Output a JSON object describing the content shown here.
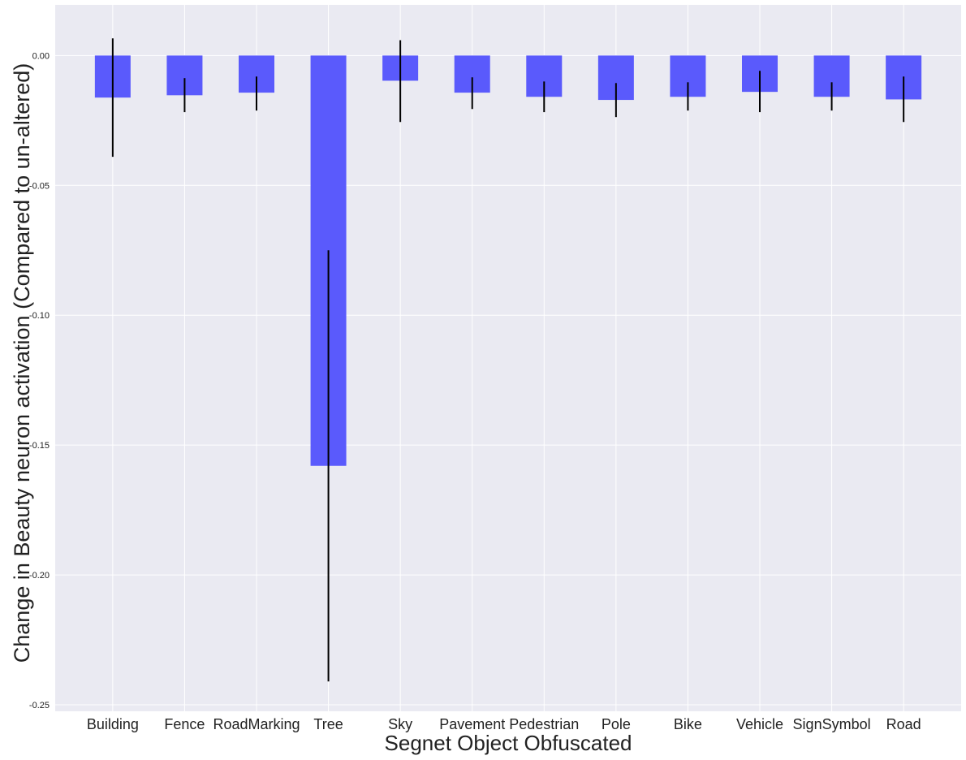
{
  "chart_data": {
    "type": "bar",
    "title": "",
    "xlabel": "Segnet Object Obfuscated",
    "ylabel": "Change in Beauty neuron activation (Compared to un-altered)",
    "categories": [
      "Building",
      "Fence",
      "RoadMarking",
      "Tree",
      "Sky",
      "Pavement",
      "Pedestrian",
      "Pole",
      "Bike",
      "Vehicle",
      "SignSymbol",
      "Road"
    ],
    "values": [
      -0.0162,
      -0.0153,
      -0.0143,
      -0.158,
      -0.0097,
      -0.0143,
      -0.0159,
      -0.0171,
      -0.0159,
      -0.014,
      -0.0159,
      -0.0169
    ],
    "error_low": [
      -0.039,
      -0.0218,
      -0.0212,
      -0.241,
      -0.0256,
      -0.0206,
      -0.0218,
      -0.0237,
      -0.0212,
      -0.0218,
      -0.0212,
      -0.0256
    ],
    "error_high": [
      0.0066,
      -0.0087,
      -0.0081,
      -0.075,
      0.0059,
      -0.0084,
      -0.01,
      -0.0106,
      -0.0103,
      -0.0059,
      -0.0103,
      -0.0081
    ],
    "ylim": [
      -0.2525,
      0.0195
    ],
    "yticks": [
      0.0,
      -0.05,
      -0.1,
      -0.15,
      -0.2,
      -0.25
    ],
    "ytick_labels": [
      "0.00",
      "-0.05",
      "-0.10",
      "-0.15",
      "-0.20",
      "-0.25"
    ],
    "grid": true,
    "bar_color": "#5a5afc",
    "error_color": "#000000",
    "background_color": "#eaeaf2",
    "grid_color": "#ffffff"
  }
}
